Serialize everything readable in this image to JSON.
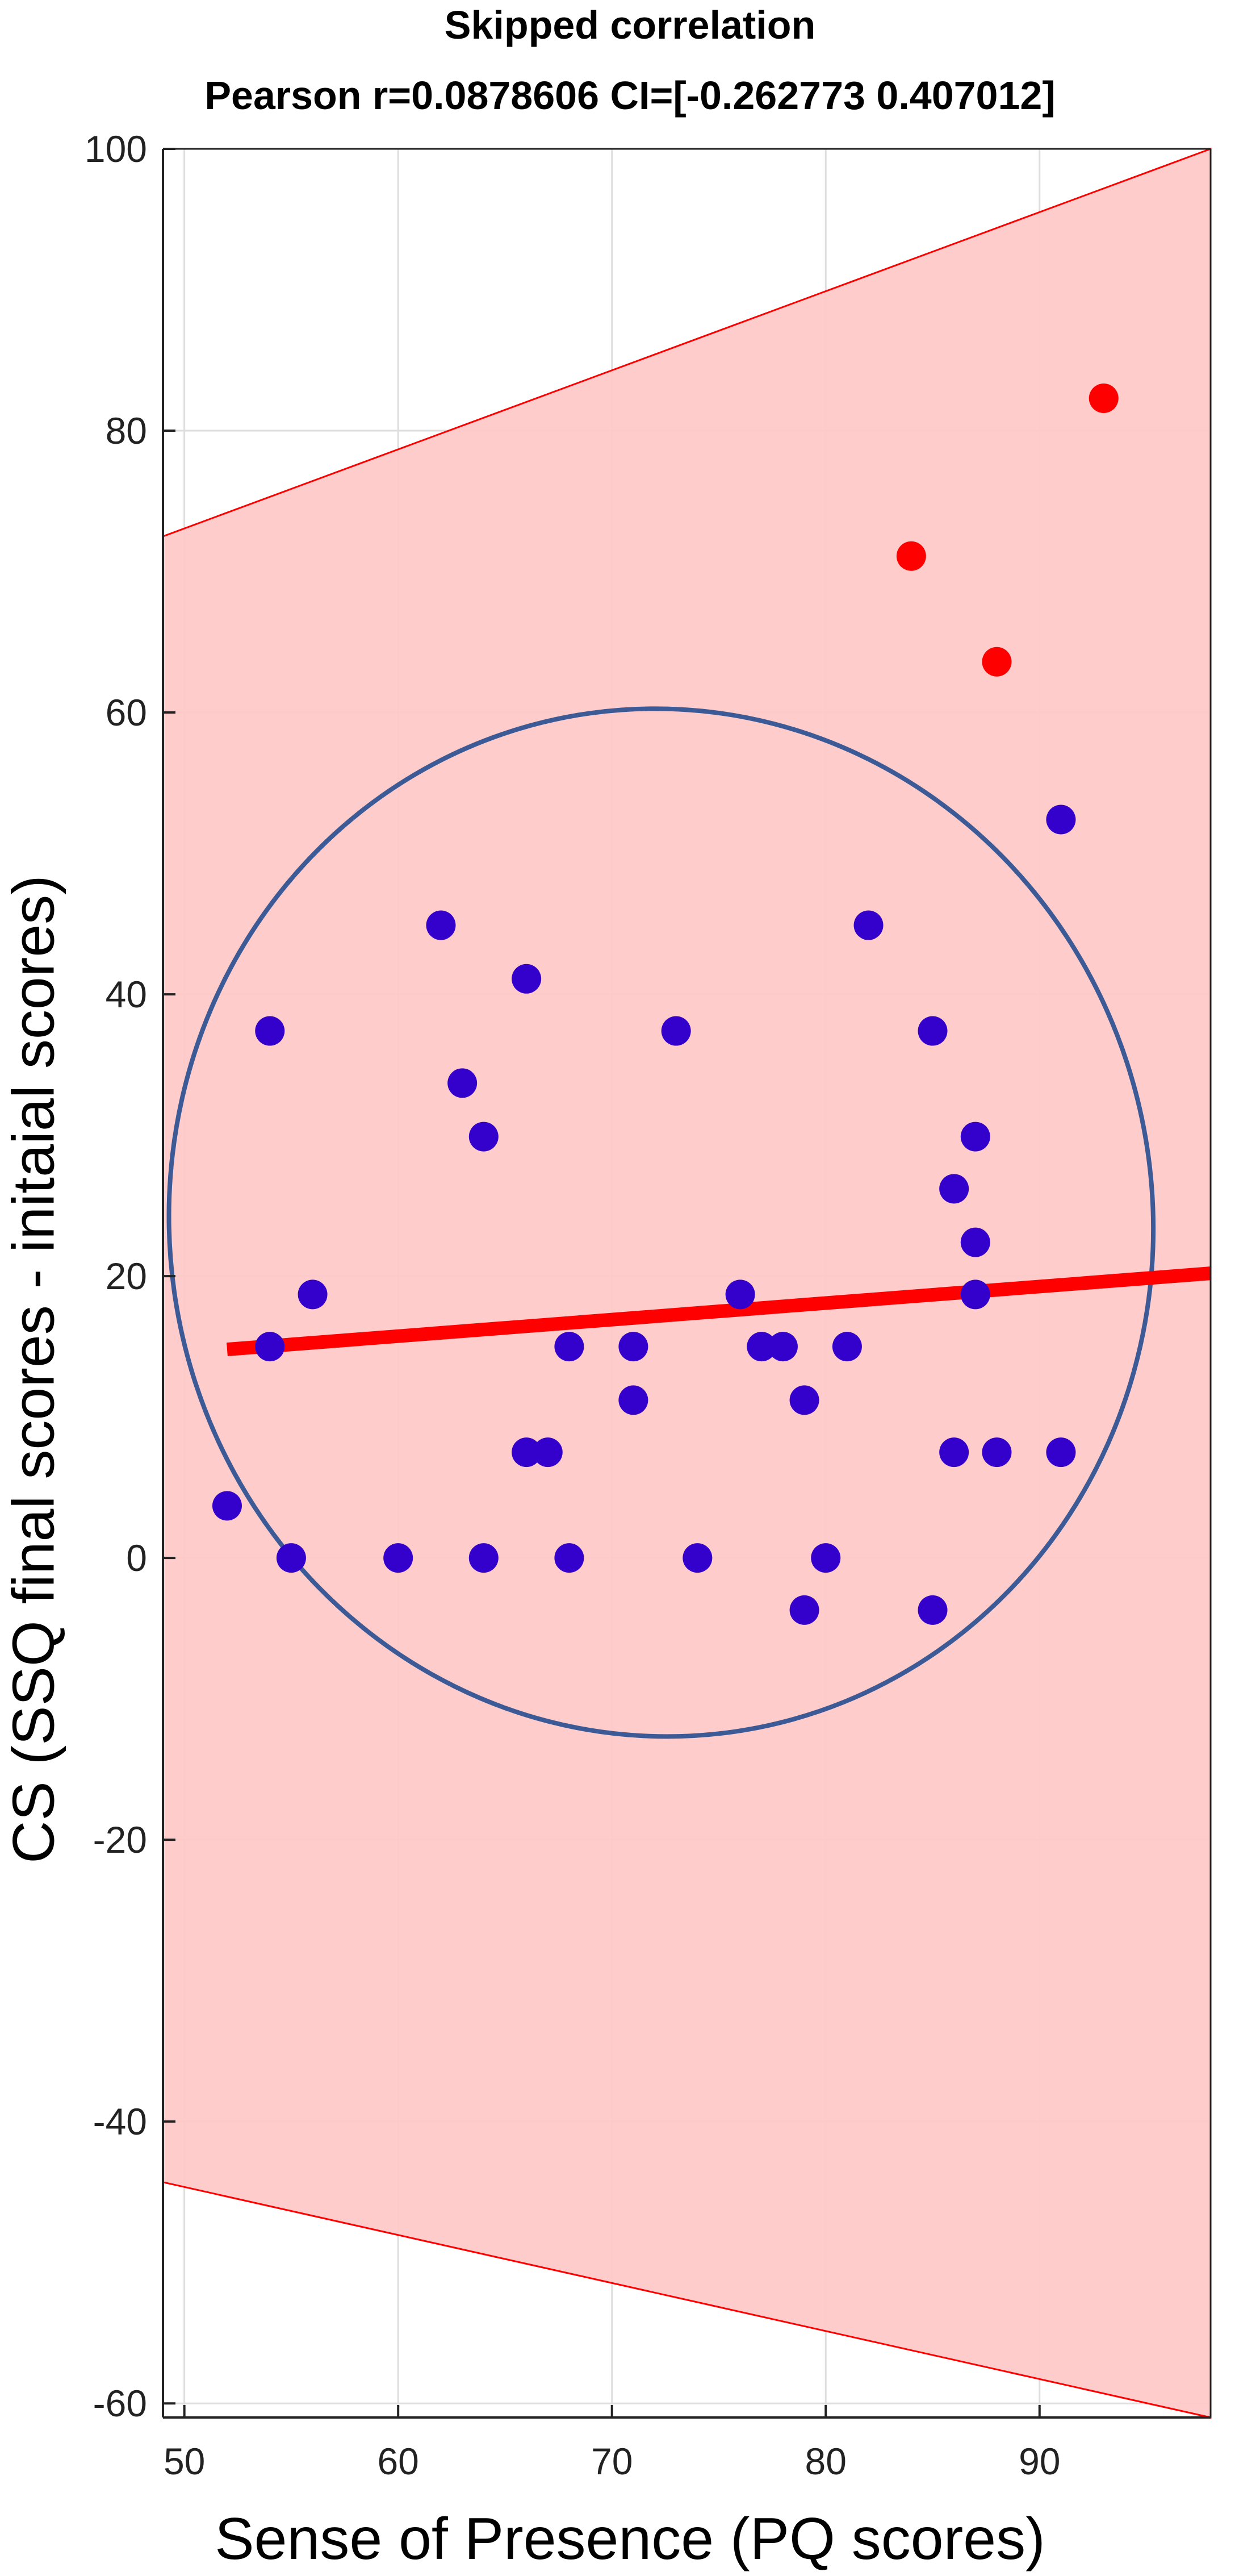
{
  "chart_data": {
    "type": "scatter",
    "title": "Skipped correlation",
    "subtitle": "Pearson r=0.0878606 CI=[-0.262773 0.407012]",
    "xlabel": "Sense of Presence (PQ scores)",
    "ylabel": "CS (SSQ final scores - initaial scores)",
    "xlim": [
      49,
      98
    ],
    "ylim": [
      -61,
      100
    ],
    "xticks": [
      50,
      60,
      70,
      80,
      90
    ],
    "yticks": [
      -60,
      -40,
      -20,
      0,
      20,
      40,
      60,
      80,
      100
    ],
    "grid": true,
    "series": [
      {
        "role": "inliers",
        "color": "#3300cc",
        "points": [
          [
            52,
            3.7
          ],
          [
            54,
            37.4
          ],
          [
            54,
            15.0
          ],
          [
            55,
            0
          ],
          [
            56,
            18.7
          ],
          [
            60,
            0
          ],
          [
            62,
            44.9
          ],
          [
            63,
            33.7
          ],
          [
            64,
            29.9
          ],
          [
            64,
            0
          ],
          [
            66,
            41.1
          ],
          [
            66,
            7.5
          ],
          [
            67,
            7.5
          ],
          [
            68,
            15.0
          ],
          [
            68,
            0
          ],
          [
            71,
            15.0
          ],
          [
            71,
            11.2
          ],
          [
            73,
            37.4
          ],
          [
            74,
            0
          ],
          [
            76,
            18.7
          ],
          [
            77,
            15.0
          ],
          [
            78,
            15.0
          ],
          [
            79,
            11.2
          ],
          [
            79,
            -3.7
          ],
          [
            80,
            0
          ],
          [
            81,
            15.0
          ],
          [
            82,
            44.9
          ],
          [
            85,
            37.4
          ],
          [
            85,
            -3.7
          ],
          [
            86,
            26.2
          ],
          [
            86,
            7.5
          ],
          [
            87,
            29.9
          ],
          [
            87,
            22.4
          ],
          [
            87,
            18.7
          ],
          [
            88,
            7.5
          ],
          [
            91,
            52.4
          ],
          [
            91,
            7.5
          ]
        ]
      },
      {
        "role": "outliers",
        "color": "#ff0000",
        "points": [
          [
            84,
            71.1
          ],
          [
            88,
            63.6
          ],
          [
            93,
            82.3
          ]
        ]
      }
    ],
    "regression_line": {
      "color": "#ff0000",
      "points": [
        [
          52,
          14.8
        ],
        [
          98,
          20.2
        ]
      ]
    },
    "confidence_band": {
      "color": "#ffc8c8",
      "edge_color": "#ff0000",
      "upper": [
        [
          49,
          72.5
        ],
        [
          98,
          100
        ]
      ],
      "lower": [
        [
          49,
          -44.3
        ],
        [
          98,
          -61
        ]
      ]
    },
    "ellipse": {
      "color": "#3c5a96",
      "center": [
        72.3,
        23.8
      ],
      "semi_axes": [
        23.0,
        36.5
      ],
      "rotation_deg": -8
    }
  }
}
